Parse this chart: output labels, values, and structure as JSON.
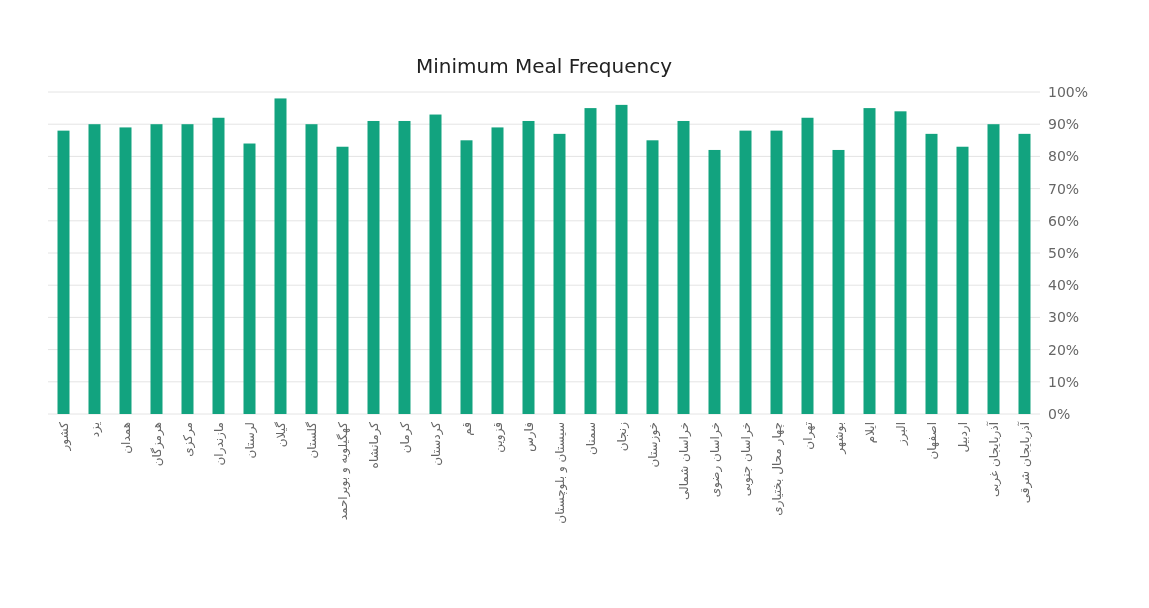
{
  "chart_data": {
    "type": "bar",
    "title": "Minimum Meal Frequency",
    "categories": [
      "کشور",
      "یزد",
      "همدان",
      "هرمزگان",
      "مرکزی",
      "مازندران",
      "لرستان",
      "گیلان",
      "گلستان",
      "کهگیلویه و بویراحمد",
      "کرمانشاه",
      "کرمان",
      "کردستان",
      "قم",
      "قزوین",
      "فارس",
      "سیستان و بلوچستان",
      "سمنان",
      "زنجان",
      "خوزستان",
      "خراسان شمالی",
      "خراسان رضوی",
      "خراسان جنوبی",
      "چهار محال بختیاری",
      "تهران",
      "بوشهر",
      "ایلام",
      "البرز",
      "اصفهان",
      "اردبیل",
      "آذربایجان غربی",
      "آذربایجان شرقی"
    ],
    "values": [
      88,
      90,
      89,
      90,
      90,
      92,
      84,
      98,
      90,
      83,
      91,
      91,
      93,
      85,
      89,
      91,
      87,
      95,
      96,
      85,
      91,
      82,
      88,
      88,
      92,
      82,
      95,
      94,
      87,
      83,
      90,
      87
    ],
    "color": "#12a37f",
    "ylim": [
      0,
      100
    ],
    "yticks": [
      {
        "value": 0,
        "label": "0%"
      },
      {
        "value": 10,
        "label": "10%"
      },
      {
        "value": 20,
        "label": "20%"
      },
      {
        "value": 30,
        "label": "30%"
      },
      {
        "value": 40,
        "label": "40%"
      },
      {
        "value": 50,
        "label": "50%"
      },
      {
        "value": 60,
        "label": "60%"
      },
      {
        "value": 70,
        "label": "70%"
      },
      {
        "value": 80,
        "label": "80%"
      },
      {
        "value": 90,
        "label": "90%"
      },
      {
        "value": 100,
        "label": "100%"
      }
    ],
    "grid": "y"
  }
}
